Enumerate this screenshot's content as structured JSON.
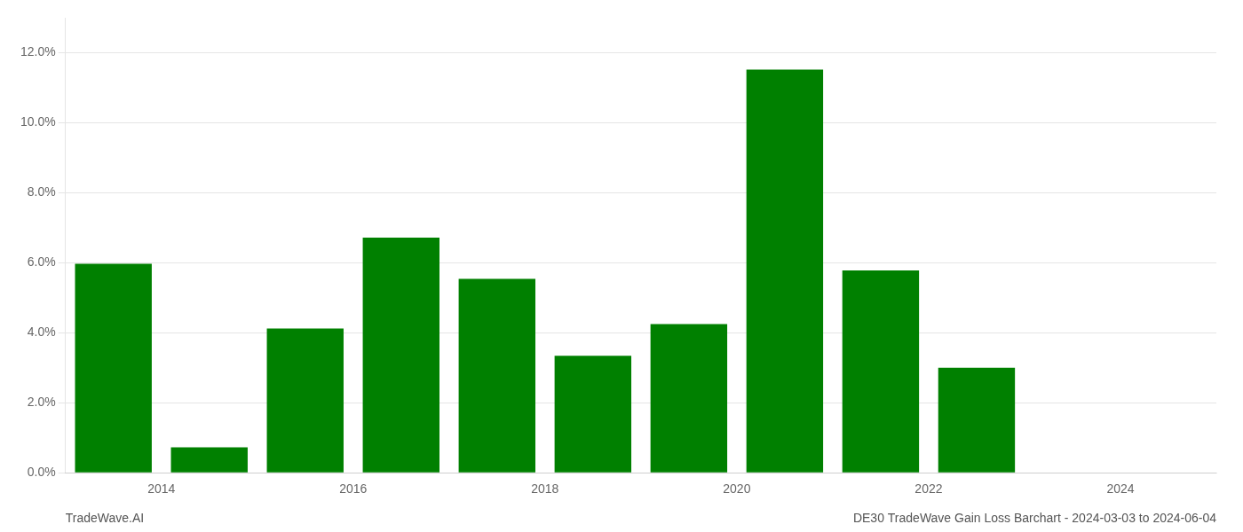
{
  "chart_data": {
    "type": "bar",
    "x": [
      2013.5,
      2014.5,
      2015.5,
      2016.5,
      2017.5,
      2018.5,
      2019.5,
      2020.5,
      2021.5,
      2022.5,
      2023.5
    ],
    "values": [
      0.0597,
      0.0073,
      0.0412,
      0.0672,
      0.0554,
      0.0334,
      0.0425,
      0.1152,
      0.0578,
      0.03,
      0.0
    ],
    "color": "#008000",
    "xlim": [
      2013.0,
      2025.0
    ],
    "xticks": [
      2014,
      2016,
      2018,
      2020,
      2022,
      2024
    ],
    "ylim": [
      0,
      0.13
    ],
    "yticks": [
      {
        "value": 0.0,
        "label": "0.0%"
      },
      {
        "value": 0.02,
        "label": "2.0%"
      },
      {
        "value": 0.04,
        "label": "4.0%"
      },
      {
        "value": 0.06,
        "label": "6.0%"
      },
      {
        "value": 0.08,
        "label": "8.0%"
      },
      {
        "value": 0.1,
        "label": "10.0%"
      },
      {
        "value": 0.12,
        "label": "12.0%"
      }
    ],
    "grid": true,
    "annotations": [
      "TradeWave.AI",
      "DE30 TradeWave Gain Loss Barchart - 2024-03-03 to 2024-06-04"
    ]
  }
}
